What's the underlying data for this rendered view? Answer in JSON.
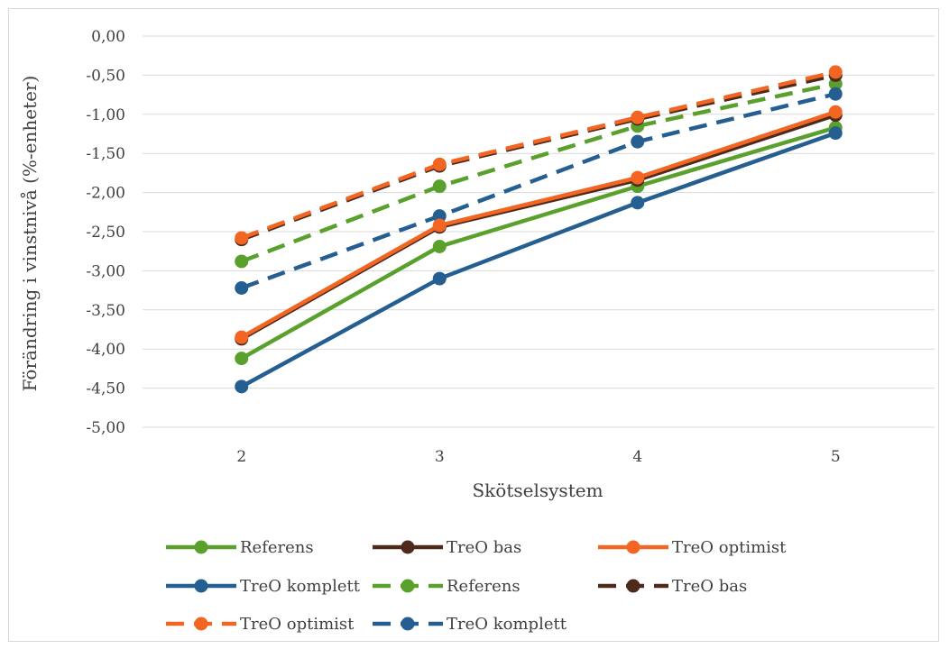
{
  "chart_data": {
    "type": "line",
    "xlabel": "Skötselsystem",
    "ylabel": "Förändring i vinstnivå (%-enheter)",
    "x": [
      2,
      3,
      4,
      5
    ],
    "x_tick_labels": [
      "2",
      "3",
      "4",
      "5"
    ],
    "ylim": [
      -5.0,
      0.0
    ],
    "y_tick_labels": [
      "0,00",
      "-0,50",
      "-1,00",
      "-1,50",
      "-2,00",
      "-2,50",
      "-3,00",
      "-3,50",
      "-4,00",
      "-4,50",
      "-5,00"
    ],
    "grid": true,
    "legend_position": "bottom",
    "series": [
      {
        "name": "Referens",
        "color": "#5aa02c",
        "dashed": false,
        "values": [
          -4.12,
          -2.69,
          -1.92,
          -1.17
        ]
      },
      {
        "name": "TreO bas",
        "color": "#4d2a1a",
        "dashed": false,
        "values": [
          -3.87,
          -2.44,
          -1.84,
          -1.01
        ]
      },
      {
        "name": "TreO optimist",
        "color": "#f26522",
        "dashed": false,
        "values": [
          -3.85,
          -2.42,
          -1.81,
          -0.97
        ]
      },
      {
        "name": "TreO komplett",
        "color": "#255e91",
        "dashed": false,
        "values": [
          -4.48,
          -3.1,
          -2.13,
          -1.24
        ]
      },
      {
        "name": "Referens",
        "color": "#5aa02c",
        "dashed": true,
        "values": [
          -2.88,
          -1.92,
          -1.15,
          -0.61
        ]
      },
      {
        "name": "TreO bas",
        "color": "#4d2a1a",
        "dashed": true,
        "values": [
          -2.6,
          -1.66,
          -1.06,
          -0.5
        ]
      },
      {
        "name": "TreO optimist",
        "color": "#f26522",
        "dashed": true,
        "values": [
          -2.58,
          -1.64,
          -1.04,
          -0.46
        ]
      },
      {
        "name": "TreO komplett",
        "color": "#255e91",
        "dashed": true,
        "values": [
          -3.22,
          -2.3,
          -1.35,
          -0.74
        ]
      }
    ]
  }
}
